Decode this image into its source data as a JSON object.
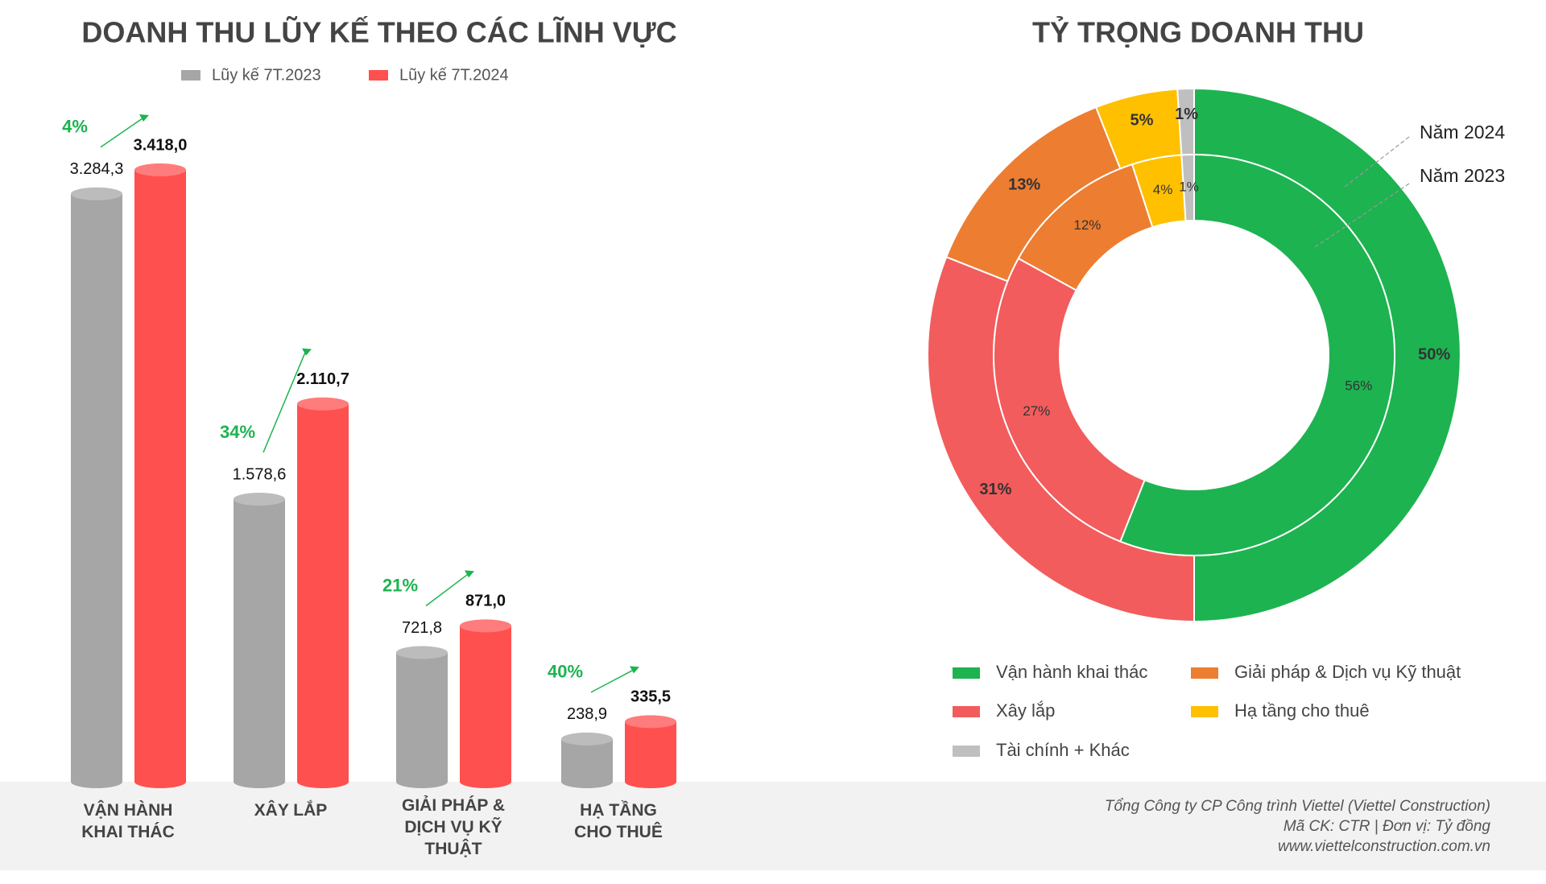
{
  "chart_data": [
    {
      "type": "bar",
      "title": "DOANH THU LŨY KẾ THEO CÁC LĨNH VỰC",
      "categories": [
        "VẬN HÀNH KHAI THÁC",
        "XÂY LẮP",
        "GIẢI PHÁP & DỊCH VỤ KỸ THUẬT",
        "HẠ TẦNG CHO THUÊ"
      ],
      "series": [
        {
          "name": "Lũy kế 7T.2023",
          "color": "#a6a6a6",
          "values": [
            3284.3,
            1578.6,
            721.8,
            238.9
          ],
          "value_labels": [
            "3.284,3",
            "1.578,6",
            "721,8",
            "238,9"
          ]
        },
        {
          "name": "Lũy kế 7T.2024",
          "color": "#ff5050",
          "values": [
            3418.0,
            2110.7,
            871.0,
            335.5
          ],
          "value_labels": [
            "3.418,0",
            "2.110,7",
            "871,0",
            "335,5"
          ]
        }
      ],
      "growth_labels": [
        "4%",
        "34%",
        "21%",
        "40%"
      ],
      "growth_color": "#1db350"
    },
    {
      "type": "donut",
      "title": "TỶ TRỌNG DOANH THU",
      "categories": [
        "Vận hành khai thác",
        "Xây lắp",
        "Giải pháp & Dịch vụ Kỹ thuật",
        "Hạ tầng cho thuê",
        "Tài chính + Khác"
      ],
      "colors": [
        "#1db350",
        "#f25c5c",
        "#ed7d31",
        "#ffc000",
        "#bfbfbf"
      ],
      "series": [
        {
          "name": "Năm 2024",
          "values": [
            50,
            31,
            13,
            5,
            1
          ],
          "value_labels": [
            "50%",
            "31%",
            "13%",
            "5%",
            "1%"
          ]
        },
        {
          "name": "Năm 2023",
          "values": [
            56,
            27,
            12,
            4,
            1
          ],
          "value_labels": [
            "56%",
            "27%",
            "12%",
            "4%",
            "1%"
          ]
        }
      ]
    }
  ],
  "footer": [
    "Tổng Công ty CP Công trình Viettel (Viettel Construction)",
    "Mã CK: CTR  |  Đơn vị: Tỷ đồng",
    "www.viettelconstruction.com.vn"
  ]
}
